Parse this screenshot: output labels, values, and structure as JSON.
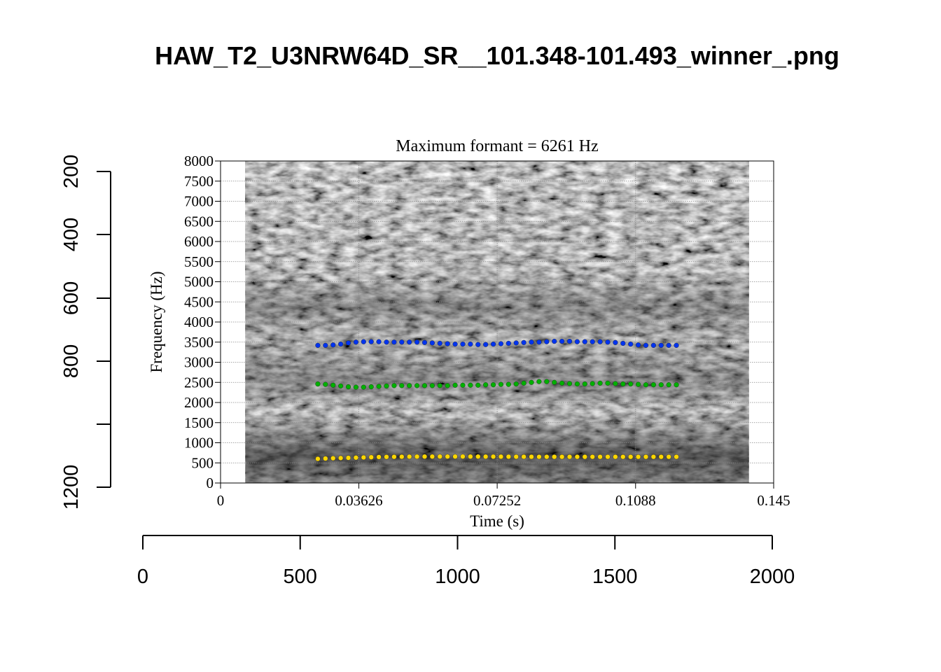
{
  "title": "HAW_T2_U3NRW64D_SR__101.348-101.493_winner_.png",
  "outer_axes": {
    "x_ticks": [
      "0",
      "500",
      "1000",
      "1500",
      "2000"
    ],
    "y_ticks": [
      "200",
      "400",
      "600",
      "800",
      "1200"
    ]
  },
  "chart_data": {
    "type": "scatter",
    "title": "Maximum formant  =  6261 Hz",
    "xlabel": "Time (s)",
    "ylabel": "Frequency (Hz)",
    "xlim": [
      0,
      0.145
    ],
    "ylim": [
      0,
      8000
    ],
    "x_tick_labels": [
      "0",
      "0.03626",
      "0.07252",
      "0.1088",
      "0.145"
    ],
    "y_tick_labels": [
      "0",
      "500",
      "1000",
      "1500",
      "2000",
      "2500",
      "3000",
      "3500",
      "4000",
      "4500",
      "5000",
      "5500",
      "6000",
      "6500",
      "7000",
      "7500",
      "8000"
    ],
    "grid": true,
    "background": "grayscale spectrogram",
    "spectrogram_time_range": [
      0.0065,
      0.1385
    ],
    "formant_time_range": [
      0.0255,
      0.1195
    ],
    "series": [
      {
        "color": "#ffd700",
        "values": [
          600,
          608,
          615,
          620,
          625,
          630,
          635,
          640,
          645,
          648,
          650,
          652,
          654,
          655,
          656,
          656,
          657,
          657,
          657,
          657,
          656,
          656,
          655,
          655,
          654,
          653,
          652,
          652,
          651,
          650,
          650,
          650,
          650,
          650,
          650,
          650,
          650,
          650,
          650,
          650,
          650,
          650,
          650,
          650,
          650,
          650,
          650,
          650
        ]
      },
      {
        "color": "#00b000",
        "values": [
          2460,
          2450,
          2430,
          2410,
          2390,
          2380,
          2380,
          2390,
          2400,
          2410,
          2420,
          2420,
          2420,
          2420,
          2420,
          2420,
          2420,
          2420,
          2430,
          2430,
          2430,
          2430,
          2440,
          2440,
          2450,
          2450,
          2460,
          2480,
          2500,
          2520,
          2520,
          2500,
          2480,
          2470,
          2460,
          2460,
          2470,
          2480,
          2480,
          2470,
          2460,
          2460,
          2450,
          2440,
          2440,
          2440,
          2440,
          2440
        ]
      },
      {
        "color": "#0033ee",
        "values": [
          3420,
          3420,
          3430,
          3450,
          3480,
          3500,
          3510,
          3510,
          3510,
          3500,
          3500,
          3500,
          3500,
          3500,
          3490,
          3480,
          3470,
          3460,
          3450,
          3450,
          3450,
          3440,
          3440,
          3450,
          3460,
          3470,
          3480,
          3490,
          3500,
          3500,
          3510,
          3520,
          3520,
          3520,
          3510,
          3510,
          3510,
          3510,
          3500,
          3490,
          3470,
          3450,
          3430,
          3420,
          3420,
          3420,
          3420,
          3420
        ]
      }
    ]
  }
}
